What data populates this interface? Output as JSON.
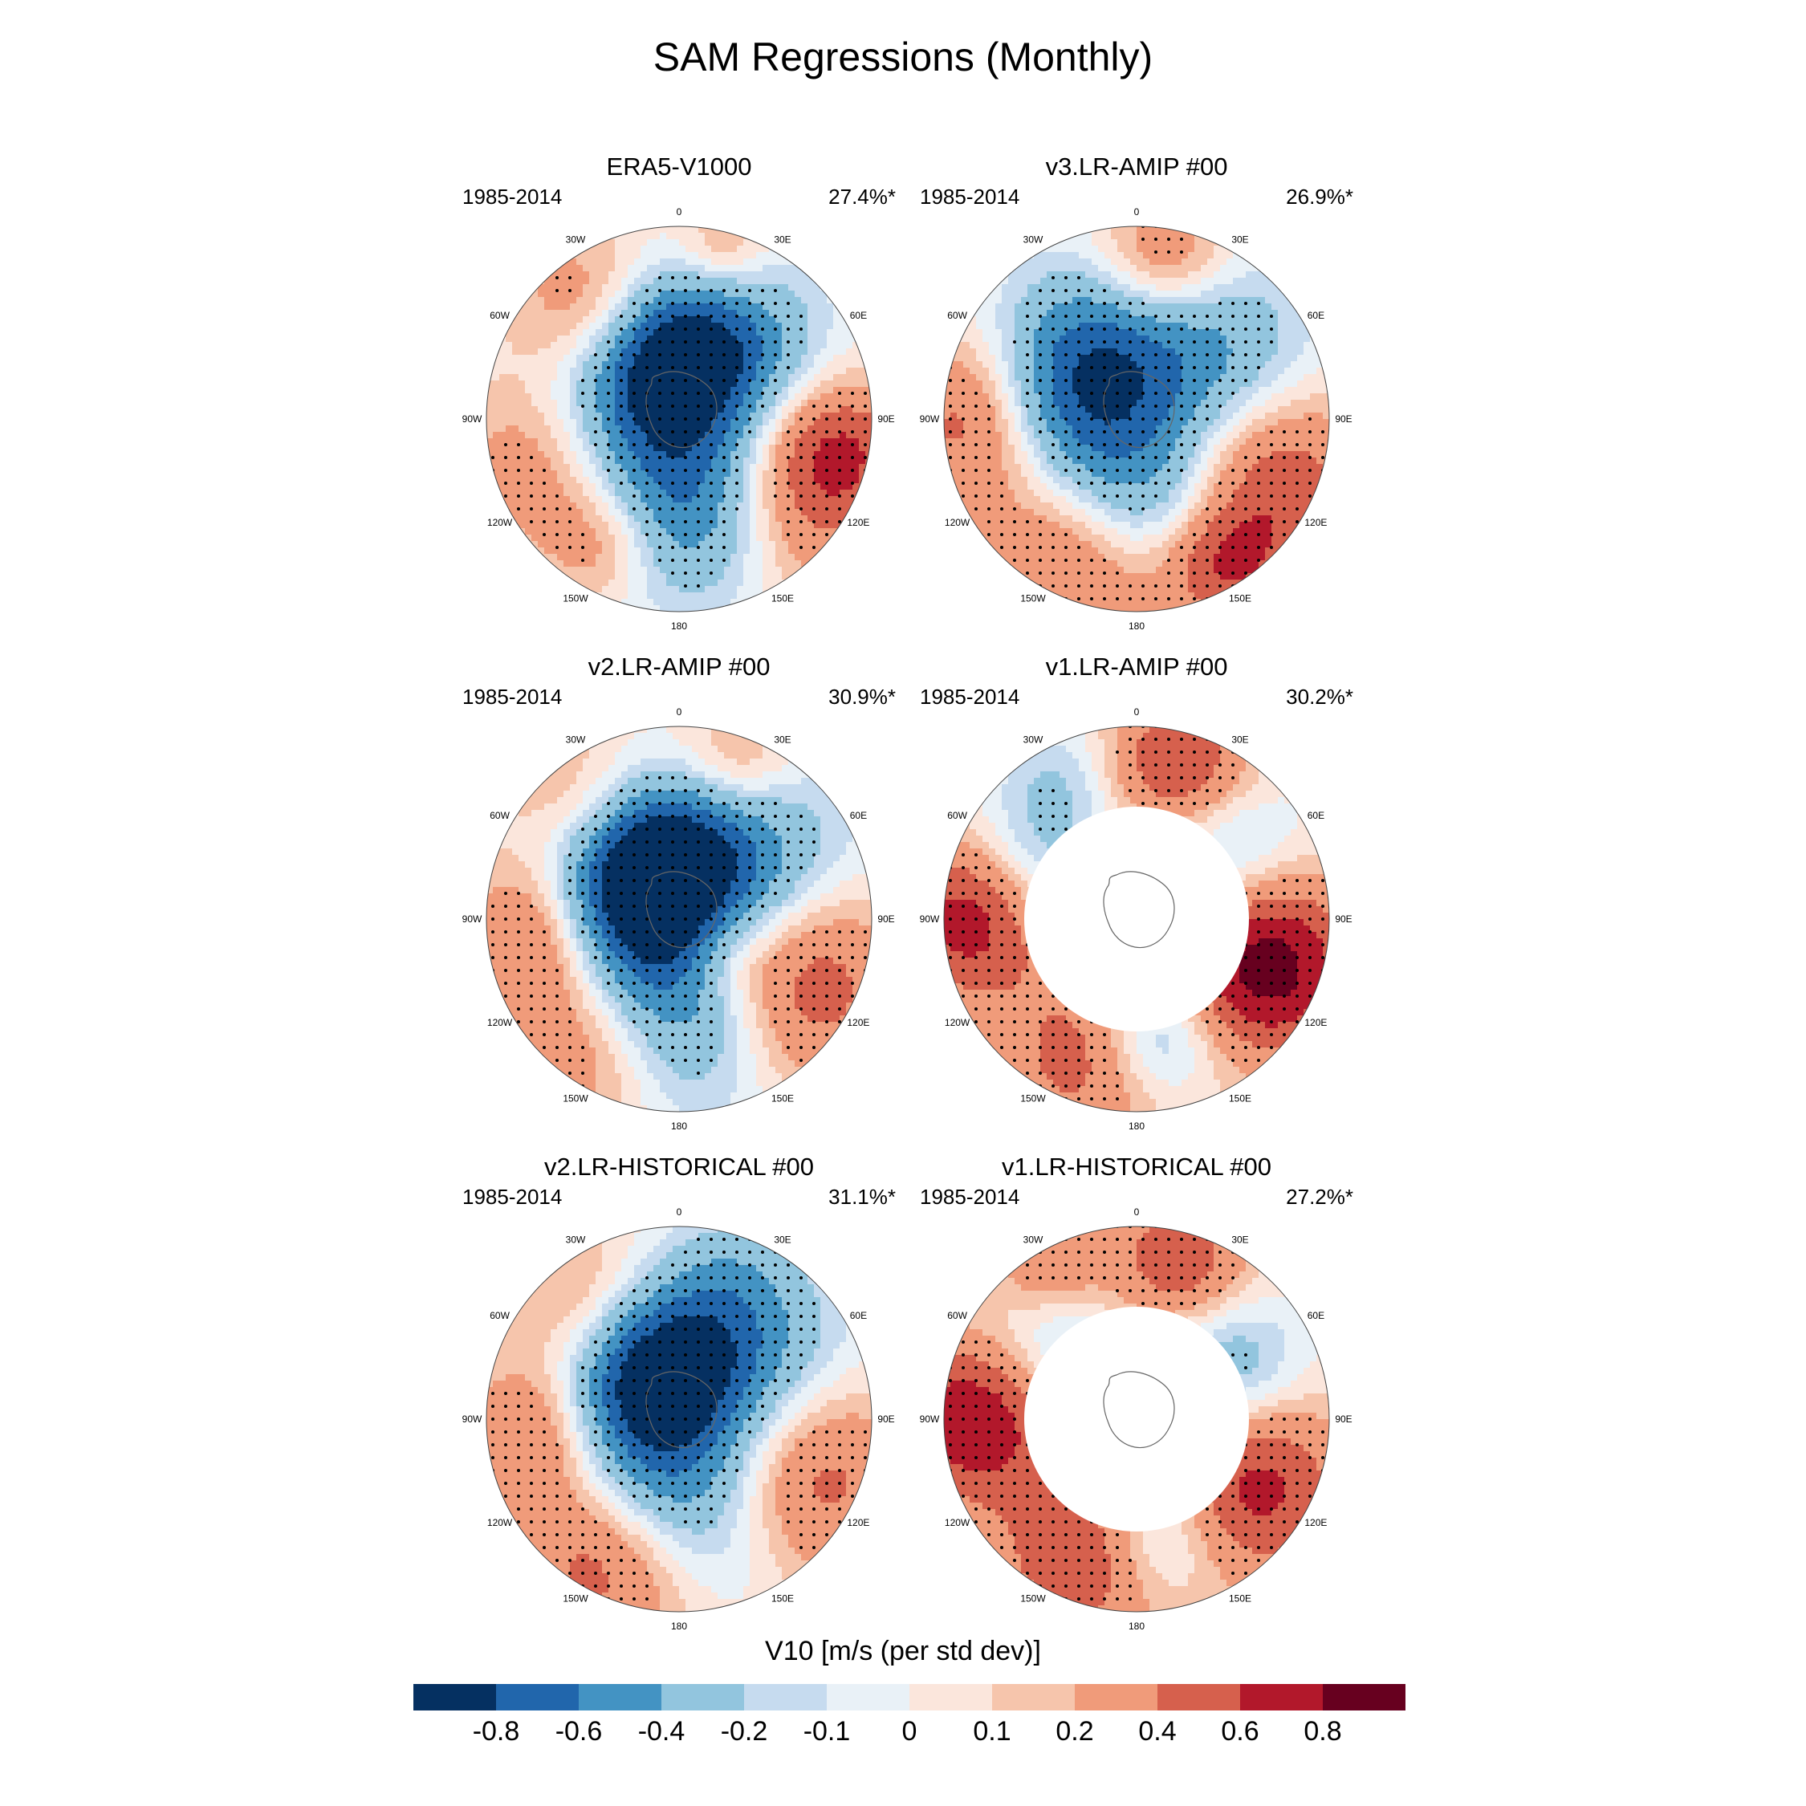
{
  "title": "SAM Regressions (Monthly)",
  "panels": [
    {
      "title": "ERA5-V1000",
      "period": "1985-2014",
      "percent": "27.4%*",
      "land_masked": false
    },
    {
      "title": "v3.LR-AMIP  #00",
      "period": "1985-2014",
      "percent": "26.9%*",
      "land_masked": false
    },
    {
      "title": "v2.LR-AMIP  #00",
      "period": "1985-2014",
      "percent": "30.9%*",
      "land_masked": false
    },
    {
      "title": "v1.LR-AMIP  #00",
      "period": "1985-2014",
      "percent": "30.2%*",
      "land_masked": true
    },
    {
      "title": "v2.LR-HISTORICAL  #00",
      "period": "1985-2014",
      "percent": "31.1%*",
      "land_masked": false
    },
    {
      "title": "v1.LR-HISTORICAL  #00",
      "period": "1985-2014",
      "percent": "27.2%*",
      "land_masked": true
    }
  ],
  "longitude_labels": [
    "0",
    "30E",
    "60E",
    "90E",
    "120E",
    "150E",
    "180",
    "150W",
    "120W",
    "90W",
    "60W",
    "30W"
  ],
  "colorbar": {
    "title": "V10 [m/s (per std dev)]",
    "labels": [
      "-0.8",
      "-0.6",
      "-0.4",
      "-0.2",
      "-0.1",
      "0",
      "0.1",
      "0.2",
      "0.4",
      "0.6",
      "0.8"
    ],
    "colors": [
      "#053061",
      "#2166ac",
      "#4393c3",
      "#92c5de",
      "#c6dbef",
      "#e9f1f7",
      "#fbe6dc",
      "#f6c5ac",
      "#f09b7a",
      "#d6604d",
      "#b2182b",
      "#67001f"
    ]
  }
}
